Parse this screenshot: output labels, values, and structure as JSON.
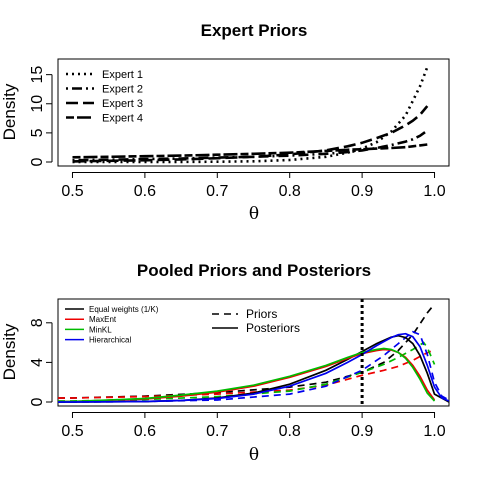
{
  "chart_data": [
    {
      "type": "line",
      "title": "Expert Priors",
      "xlabel": "θ",
      "ylabel": "Density",
      "xlim": [
        0.48,
        1.02
      ],
      "ylim": [
        0,
        17
      ],
      "xticks": [
        "0.5",
        "0.6",
        "0.7",
        "0.8",
        "0.9",
        "1.0"
      ],
      "yticks": [
        "0",
        "5",
        "10",
        "15"
      ],
      "legend_position": "top-left",
      "x": [
        0.5,
        0.55,
        0.6,
        0.65,
        0.7,
        0.75,
        0.8,
        0.85,
        0.88,
        0.9,
        0.92,
        0.94,
        0.96,
        0.97,
        0.98,
        0.99
      ],
      "series": [
        {
          "name": "Expert 1",
          "dash": "dotted",
          "values": [
            0.0,
            0.0,
            0.01,
            0.02,
            0.05,
            0.12,
            0.35,
            0.9,
            1.6,
            2.3,
            3.4,
            5.2,
            8.0,
            10.5,
            13.0,
            16.3
          ]
        },
        {
          "name": "Expert 2",
          "dash": "dashdot",
          "values": [
            0.3,
            0.4,
            0.5,
            0.6,
            0.75,
            0.9,
            1.1,
            1.4,
            1.7,
            2.0,
            2.4,
            2.9,
            3.5,
            3.9,
            4.5,
            5.4
          ]
        },
        {
          "name": "Expert 3",
          "dash": "longdash",
          "values": [
            0.1,
            0.2,
            0.3,
            0.45,
            0.65,
            0.9,
            1.3,
            2.0,
            2.7,
            3.3,
            4.1,
            5.0,
            6.3,
            7.1,
            8.1,
            9.6
          ]
        },
        {
          "name": "Expert 4",
          "dash": "twodash",
          "values": [
            0.8,
            0.9,
            1.0,
            1.1,
            1.25,
            1.4,
            1.6,
            1.9,
            2.1,
            2.2,
            2.3,
            2.4,
            2.55,
            2.7,
            2.85,
            3.0
          ]
        }
      ]
    },
    {
      "type": "line",
      "title": "Pooled Priors and Posteriors",
      "xlabel": "θ",
      "ylabel": "Density",
      "xlim": [
        0.48,
        1.02
      ],
      "ylim": [
        0,
        10
      ],
      "xticks": [
        "0.5",
        "0.6",
        "0.7",
        "0.8",
        "0.9",
        "1.0"
      ],
      "yticks": [
        "0",
        "4",
        "8"
      ],
      "legend_position": "top-left",
      "vline_x": 0.9,
      "line_types": [
        {
          "name": "Priors",
          "dash": "dashed"
        },
        {
          "name": "Posteriors",
          "dash": "solid"
        }
      ],
      "series": [
        {
          "name": "Equal weights (1/K)",
          "color": "#000000",
          "prior": {
            "x": [
              0.48,
              0.5,
              0.6,
              0.7,
              0.8,
              0.85,
              0.9,
              0.93,
              0.95,
              0.97,
              0.99,
              1.0
            ],
            "values": [
              0.4,
              0.4,
              0.6,
              0.95,
              1.5,
              2.0,
              3.0,
              4.0,
              5.2,
              6.8,
              9.0,
              9.9
            ]
          },
          "posterior": {
            "x": [
              0.48,
              0.5,
              0.6,
              0.65,
              0.7,
              0.75,
              0.8,
              0.85,
              0.88,
              0.9,
              0.92,
              0.94,
              0.95,
              0.96,
              0.97,
              0.98,
              0.99,
              1.0,
              1.02
            ],
            "values": [
              0.0,
              0.0,
              0.05,
              0.15,
              0.4,
              0.9,
              1.8,
              3.2,
              4.3,
              5.1,
              5.9,
              6.55,
              6.7,
              6.5,
              5.9,
              4.7,
              2.9,
              0.8,
              0.0
            ]
          }
        },
        {
          "name": "MaxEnt",
          "color": "#ee0000",
          "prior": {
            "x": [
              0.48,
              0.5,
              0.6,
              0.7,
              0.8,
              0.85,
              0.9,
              0.93,
              0.95,
              0.97,
              0.985,
              1.0
            ],
            "values": [
              0.4,
              0.4,
              0.55,
              0.8,
              1.2,
              1.7,
              2.7,
              3.2,
              3.6,
              4.2,
              4.8,
              5.3
            ]
          },
          "posterior": {
            "x": [
              0.48,
              0.5,
              0.6,
              0.65,
              0.7,
              0.75,
              0.8,
              0.85,
              0.88,
              0.9,
              0.92,
              0.93,
              0.94,
              0.95,
              0.96,
              0.97,
              0.98,
              0.99,
              1.0
            ],
            "values": [
              0.05,
              0.05,
              0.3,
              0.6,
              1.0,
              1.6,
              2.5,
              3.6,
              4.4,
              4.9,
              5.2,
              5.3,
              5.25,
              5.0,
              4.5,
              3.7,
              2.6,
              1.2,
              0.2
            ]
          }
        },
        {
          "name": "MinKL",
          "color": "#00bb00",
          "prior": {
            "x": [
              0.48,
              0.5,
              0.6,
              0.7,
              0.8,
              0.85,
              0.9,
              0.93,
              0.95,
              0.97,
              0.985,
              0.99,
              1.0
            ],
            "values": [
              0.1,
              0.1,
              0.25,
              0.55,
              1.1,
              1.8,
              3.0,
              3.8,
              4.5,
              5.3,
              6.0,
              5.5,
              3.8
            ]
          },
          "posterior": {
            "x": [
              0.48,
              0.5,
              0.6,
              0.65,
              0.7,
              0.75,
              0.8,
              0.85,
              0.88,
              0.9,
              0.92,
              0.93,
              0.94,
              0.95,
              0.96,
              0.97,
              0.98,
              0.99,
              1.0
            ],
            "values": [
              0.05,
              0.05,
              0.35,
              0.7,
              1.1,
              1.7,
              2.6,
              3.7,
              4.5,
              5.0,
              5.3,
              5.4,
              5.3,
              5.0,
              4.4,
              3.5,
              2.3,
              0.9,
              0.1
            ]
          }
        },
        {
          "name": "Hierarchical",
          "color": "#0000ee",
          "prior": {
            "x": [
              0.48,
              0.5,
              0.6,
              0.7,
              0.8,
              0.85,
              0.9,
              0.93,
              0.95,
              0.97,
              0.98,
              0.99,
              1.0,
              1.01,
              1.02
            ],
            "values": [
              0.0,
              0.0,
              0.05,
              0.2,
              0.8,
              1.6,
              3.2,
              4.7,
              5.9,
              7.1,
              6.8,
              4.8,
              2.0,
              0.6,
              0.2
            ]
          },
          "posterior": {
            "x": [
              0.48,
              0.5,
              0.6,
              0.65,
              0.7,
              0.75,
              0.8,
              0.85,
              0.88,
              0.9,
              0.92,
              0.94,
              0.95,
              0.96,
              0.97,
              0.98,
              0.99,
              1.0,
              1.01,
              1.02
            ],
            "values": [
              0.0,
              0.0,
              0.05,
              0.15,
              0.35,
              0.8,
              1.6,
              2.9,
              4.0,
              4.8,
              5.7,
              6.5,
              6.8,
              6.9,
              6.6,
              5.6,
              3.7,
              1.5,
              0.4,
              0.1
            ]
          }
        }
      ]
    }
  ]
}
